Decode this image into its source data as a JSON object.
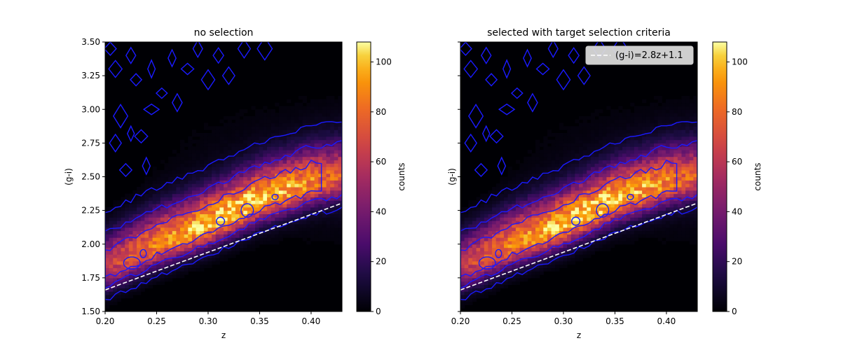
{
  "chart_data": [
    {
      "type": "heatmap",
      "title": "no selection",
      "xlabel": "z",
      "ylabel": "(g-i)",
      "xlim": [
        0.2,
        0.43
      ],
      "ylim": [
        1.5,
        3.5
      ],
      "x_ticks": [
        "0.20",
        "0.25",
        "0.30",
        "0.35",
        "0.40"
      ],
      "y_ticks": [
        "1.50",
        "1.75",
        "2.00",
        "2.25",
        "2.50",
        "2.75",
        "3.00",
        "3.25",
        "3.50"
      ],
      "y_ticks_labeled": true,
      "colormap": "inferno",
      "colorbar": {
        "label": "counts",
        "range": [
          0,
          108
        ],
        "ticks": [
          "0",
          "20",
          "40",
          "60",
          "80",
          "100"
        ]
      },
      "contour_color": "#1a1aff",
      "ridge": {
        "z": [
          0.2,
          0.25,
          0.3,
          0.35,
          0.4,
          0.43
        ],
        "g_i": [
          1.82,
          2.0,
          2.15,
          2.33,
          2.46,
          2.5
        ]
      },
      "peak_counts": 108,
      "cut_line": {
        "label": "(g-i)=2.8z+1.1",
        "slope": 2.8,
        "intercept": 1.1,
        "color": "#ffffff",
        "style": "dashed"
      },
      "legend": null,
      "grid": false
    },
    {
      "type": "heatmap",
      "title": "selected with target selection criteria",
      "xlabel": "z",
      "ylabel": "(g-i)",
      "xlim": [
        0.2,
        0.43
      ],
      "ylim": [
        1.5,
        3.5
      ],
      "x_ticks": [
        "0.20",
        "0.25",
        "0.30",
        "0.35",
        "0.40"
      ],
      "y_ticks": [
        "1.50",
        "1.75",
        "2.00",
        "2.25",
        "2.50",
        "2.75",
        "3.00",
        "3.25",
        "3.50"
      ],
      "y_ticks_labeled": false,
      "colormap": "inferno",
      "colorbar": {
        "label": "counts",
        "range": [
          0,
          108
        ],
        "ticks": [
          "0",
          "20",
          "40",
          "60",
          "80",
          "100"
        ]
      },
      "contour_color": "#1a1aff",
      "ridge": {
        "z": [
          0.2,
          0.25,
          0.3,
          0.35,
          0.4,
          0.43
        ],
        "g_i": [
          1.82,
          2.0,
          2.15,
          2.33,
          2.46,
          2.5
        ]
      },
      "peak_counts": 108,
      "cut_line": {
        "label": "(g-i)=2.8z+1.1",
        "slope": 2.8,
        "intercept": 1.1,
        "color": "#ffffff",
        "style": "dashed"
      },
      "legend": {
        "entries": [
          "(g-i)=2.8z+1.1"
        ],
        "placement": "upper right"
      },
      "grid": false
    }
  ]
}
